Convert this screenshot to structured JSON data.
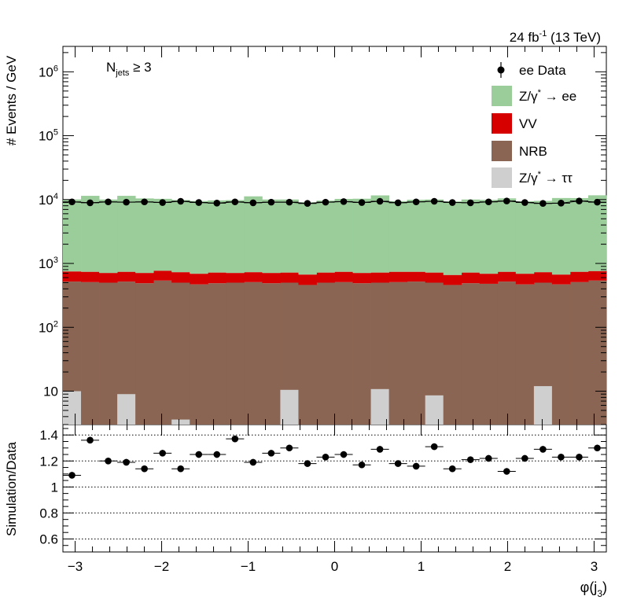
{
  "header": {
    "lumi": "24 fb",
    "lumi_exp": "-1",
    "energy": " (13 TeV)"
  },
  "selection": {
    "main": "N",
    "sub": "jets",
    "rest": " ≥ 3"
  },
  "legend": [
    {
      "label": "ee Data",
      "kind": "data",
      "color": "#000000"
    },
    {
      "label": "Z/γ* → ee",
      "kind": "box",
      "color": "#9acd9a",
      "main": "Z/γ",
      "sup": "*",
      "tail": " → ee"
    },
    {
      "label": "VV",
      "kind": "box",
      "color": "#d60000"
    },
    {
      "label": "NRB",
      "kind": "box",
      "color": "#8b6553"
    },
    {
      "label": "Z/γ* → ττ",
      "kind": "box",
      "color": "#cfcfcf",
      "main": "Z/γ",
      "sup": "*",
      "tail": " → ττ"
    }
  ],
  "chart_data": [
    {
      "type": "bar",
      "stacked": true,
      "log_y": true,
      "ylabel": "# Events / GeV",
      "ylim": [
        3,
        2500000
      ],
      "xlim": [
        -3.1416,
        3.1416
      ],
      "y_ticks": [
        {
          "value": 10,
          "base": "10",
          "exp": ""
        },
        {
          "value": 100,
          "base": "10",
          "exp": "2"
        },
        {
          "value": 1000,
          "base": "10",
          "exp": "3"
        },
        {
          "value": 10000,
          "base": "10",
          "exp": "4"
        },
        {
          "value": 100000,
          "base": "10",
          "exp": "5"
        },
        {
          "value": 1000000,
          "base": "10",
          "exp": "6"
        }
      ],
      "nbins": 30,
      "series": [
        {
          "name": "NRB",
          "color": "#8b6553",
          "values": [
            520,
            510,
            500,
            520,
            490,
            540,
            500,
            470,
            490,
            500,
            510,
            490,
            500,
            460,
            500,
            510,
            490,
            500,
            510,
            520,
            500,
            460,
            490,
            480,
            520,
            470,
            500,
            470,
            510,
            540
          ]
        },
        {
          "name": "VV",
          "color": "#d60000",
          "values": [
            230,
            230,
            210,
            220,
            220,
            230,
            230,
            220,
            230,
            210,
            220,
            220,
            220,
            210,
            220,
            230,
            220,
            220,
            230,
            220,
            220,
            200,
            230,
            210,
            220,
            220,
            230,
            200,
            230,
            220
          ]
        },
        {
          "name": "Z/γ* → ee",
          "color": "#9acd9a",
          "values": [
            9300,
            10700,
            9300,
            10700,
            9700,
            9500,
            9100,
            8800,
            9000,
            9100,
            10500,
            9300,
            9300,
            8400,
            8900,
            9500,
            9600,
            10900,
            8700,
            9200,
            9300,
            8700,
            9300,
            9200,
            9700,
            8700,
            8800,
            9900,
            9800,
            10900
          ]
        },
        {
          "name": "Z/γ* → ττ",
          "color": "#cfcfcf",
          "overlay": true,
          "values": [
            10,
            0,
            0,
            9,
            0,
            0,
            3.6,
            0,
            0,
            0,
            0,
            0,
            10.5,
            0,
            0,
            0,
            0,
            10.8,
            0,
            0,
            8.6,
            0,
            0,
            0,
            0,
            0,
            12,
            0,
            0,
            0
          ]
        }
      ],
      "data": {
        "name": "ee Data",
        "values": [
          9200,
          8900,
          9200,
          9100,
          9200,
          9000,
          9400,
          9000,
          8800,
          9200,
          8900,
          9100,
          9100,
          8700,
          9100,
          9300,
          9000,
          9400,
          8900,
          9200,
          9400,
          9000,
          8900,
          9200,
          9500,
          9000,
          8700,
          8800,
          9500,
          9100
        ]
      }
    },
    {
      "type": "scatter",
      "ylabel": "Simulation/Data",
      "xlabel_main": "φ(j",
      "xlabel_sub": "3",
      "xlabel_end": ")",
      "ylim": [
        0.5,
        1.48
      ],
      "xlim": [
        -3.1416,
        3.1416
      ],
      "y_ticks": [
        0.6,
        0.8,
        1,
        1.2,
        1.4
      ],
      "y_tick_labels": [
        "0.6",
        "0.8",
        "1",
        "1.2",
        "1.4"
      ],
      "x_ticks": [
        -3,
        -2,
        -1,
        0,
        1,
        2,
        3
      ],
      "x_tick_labels": [
        "−3",
        "−2",
        "−1",
        "0",
        "1",
        "2",
        "3"
      ],
      "gridlines": [
        0.6,
        0.8,
        1,
        1.2,
        1.4
      ],
      "values": [
        1.09,
        1.36,
        1.2,
        1.19,
        1.14,
        1.26,
        1.14,
        1.25,
        1.25,
        1.37,
        1.19,
        1.26,
        1.3,
        1.18,
        1.23,
        1.25,
        1.17,
        1.29,
        1.18,
        1.16,
        1.31,
        1.14,
        1.21,
        1.22,
        1.12,
        1.22,
        1.29,
        1.23,
        1.23,
        1.3
      ],
      "errors": [
        0.025,
        0.025,
        0.025,
        0.025,
        0.025,
        0.025,
        0.025,
        0.025,
        0.025,
        0.025,
        0.025,
        0.025,
        0.025,
        0.025,
        0.025,
        0.025,
        0.025,
        0.025,
        0.025,
        0.025,
        0.025,
        0.025,
        0.025,
        0.025,
        0.025,
        0.025,
        0.025,
        0.025,
        0.025,
        0.025
      ]
    }
  ]
}
